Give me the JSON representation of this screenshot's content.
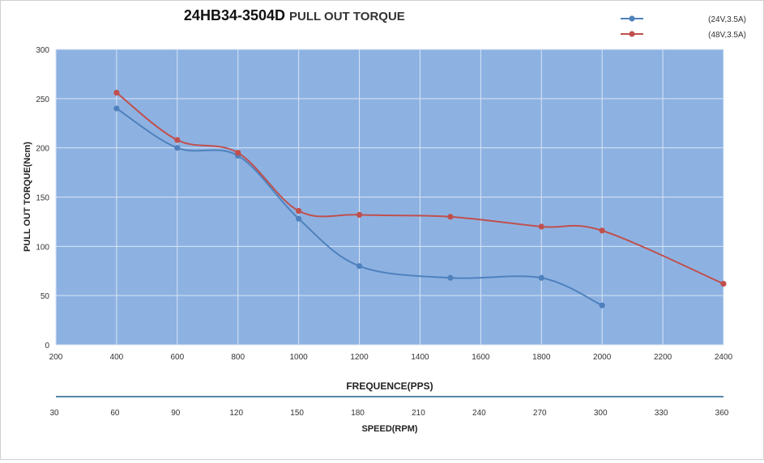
{
  "chart_data": {
    "type": "line",
    "title_main": "24HB34-3504D",
    "title_sub": "PULL OUT TORQUE",
    "xlabel": "FREQUENCE(PPS)",
    "ylabel": "PULL OUT TORQUE(Ncm)",
    "secondary_xlabel": "SPEED(RPM)",
    "xlim": [
      200,
      2400
    ],
    "ylim": [
      0,
      300
    ],
    "x_ticks": [
      200,
      400,
      600,
      800,
      1000,
      1200,
      1400,
      1600,
      1800,
      2000,
      2200,
      2400
    ],
    "y_ticks": [
      0,
      50,
      100,
      150,
      200,
      250,
      300
    ],
    "secondary_x_ticks": [
      30,
      60,
      90,
      120,
      150,
      180,
      210,
      240,
      270,
      300,
      330,
      360
    ],
    "grid": true,
    "legend_position": "top-right",
    "plot_background": "#8db2e2",
    "series": [
      {
        "name": "(24V,3.5A)",
        "color": "#4f81bd",
        "points": [
          [
            400,
            240
          ],
          [
            600,
            200
          ],
          [
            800,
            192
          ],
          [
            1000,
            128
          ],
          [
            1200,
            80
          ],
          [
            1500,
            68
          ],
          [
            1800,
            68
          ],
          [
            2000,
            40
          ]
        ]
      },
      {
        "name": "(48V,3.5A)",
        "color": "#c0504d",
        "points": [
          [
            400,
            256
          ],
          [
            600,
            208
          ],
          [
            800,
            195
          ],
          [
            1000,
            136
          ],
          [
            1200,
            132
          ],
          [
            1500,
            130
          ],
          [
            1800,
            120
          ],
          [
            2000,
            116
          ],
          [
            2400,
            62
          ]
        ]
      }
    ]
  }
}
